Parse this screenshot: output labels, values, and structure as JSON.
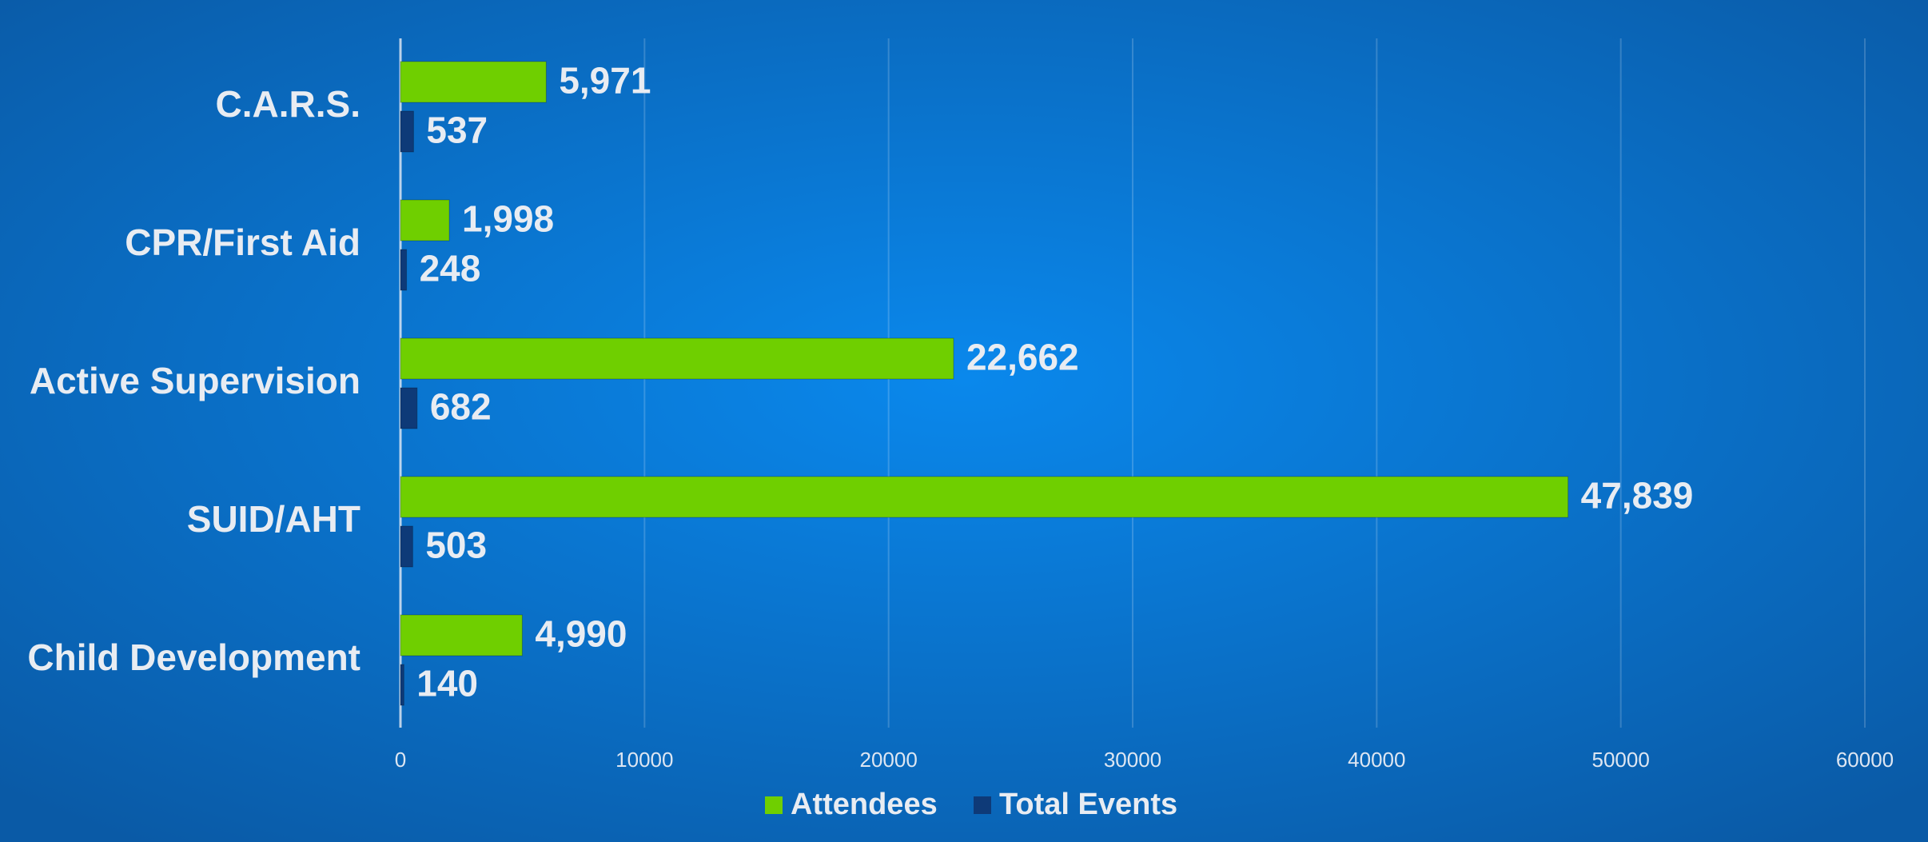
{
  "chart_data": {
    "type": "bar",
    "orientation": "horizontal",
    "categories": [
      "C.A.R.S.",
      "CPR/First Aid",
      "Active Supervision",
      "SUID/AHT",
      "Child Development"
    ],
    "series": [
      {
        "name": "Attendees",
        "color": "#6fcf00",
        "values": [
          5971,
          1998,
          22662,
          47839,
          4990
        ],
        "value_labels": [
          "5,971",
          "1,998",
          "22,662",
          "47,839",
          "4,990"
        ]
      },
      {
        "name": "Total Events",
        "color": "#0e3a78",
        "values": [
          537,
          248,
          682,
          503,
          140
        ]
      }
    ],
    "xlim": [
      0,
      60000
    ],
    "xticks": [
      0,
      10000,
      20000,
      30000,
      40000,
      50000,
      60000
    ],
    "grid": true,
    "legend": "bottom"
  }
}
